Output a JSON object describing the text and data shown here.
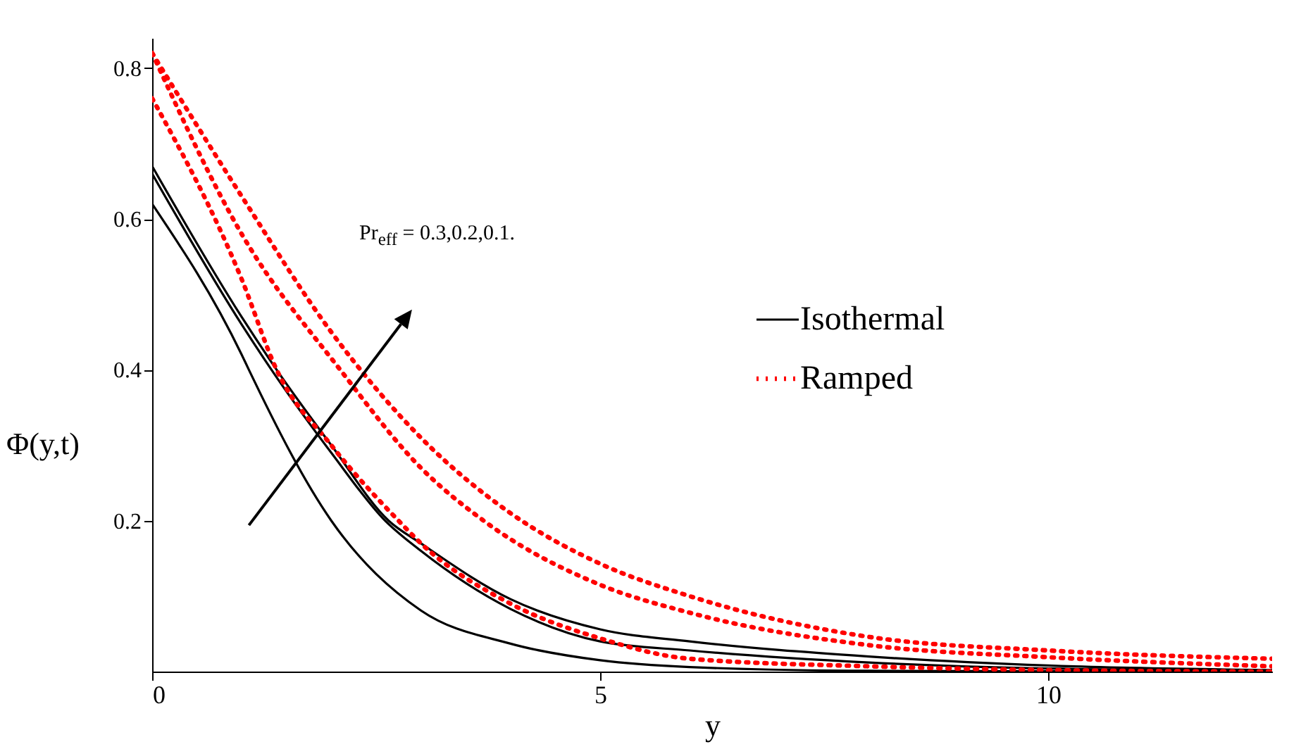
{
  "chart_data": {
    "type": "line",
    "xlabel": "y",
    "ylabel": "Φ(y,t)",
    "xlim": [
      0,
      12.5
    ],
    "ylim": [
      0,
      0.84
    ],
    "xticks": [
      0,
      5,
      10
    ],
    "yticks": [
      0.2,
      0.4,
      0.6,
      0.8
    ],
    "grid": false,
    "legend": "right",
    "marker": "none",
    "annotations": [
      "Pr$_{eff}$ = 0.3,0.2,0.1."
    ],
    "series": [
      {
        "name": "Isothermal",
        "color": "#000000",
        "line_style": "solid",
        "x": [
          0,
          1,
          1.39,
          2,
          2.64,
          3,
          4,
          5,
          6,
          8,
          10,
          12.5
        ],
        "values": [
          0.67,
          0.47,
          0.4,
          0.3,
          0.2,
          0.17,
          0.096,
          0.056,
          0.04,
          0.02,
          0.008,
          0.002
        ]
      },
      {
        "color": "#000000",
        "line_style": "solid",
        "x": [
          0,
          1,
          1.39,
          2,
          2.6,
          3,
          4,
          5,
          6,
          8,
          10,
          12.5
        ],
        "values": [
          0.66,
          0.46,
          0.39,
          0.29,
          0.2,
          0.16,
          0.083,
          0.04,
          0.028,
          0.012,
          0.004,
          0.001
        ]
      },
      {
        "color": "#000000",
        "line_style": "solid",
        "x": [
          0,
          1,
          1.08,
          2,
          3,
          4,
          5,
          6,
          8,
          12.5
        ],
        "values": [
          0.62,
          0.42,
          0.4,
          0.2,
          0.081,
          0.037,
          0.015,
          0.006,
          0.001,
          0
        ]
      },
      {
        "name": "Ramped",
        "color": "#ff0000",
        "line_style": "dotted",
        "x": [
          0,
          1,
          2,
          3,
          4,
          5,
          6,
          8,
          10,
          12.5
        ],
        "values": [
          0.82,
          0.63,
          0.45,
          0.31,
          0.21,
          0.143,
          0.1,
          0.046,
          0.028,
          0.017
        ]
      },
      {
        "color": "#ff0000",
        "line_style": "dotted",
        "x": [
          0,
          1,
          2.1,
          3,
          3.7,
          5,
          6,
          8,
          10,
          12.5
        ],
        "values": [
          0.82,
          0.58,
          0.4,
          0.27,
          0.2,
          0.115,
          0.078,
          0.035,
          0.019,
          0.007
        ]
      },
      {
        "color": "#ff0000",
        "line_style": "dotted",
        "x": [
          0,
          1,
          1.39,
          2,
          2.75,
          3,
          4,
          5,
          6,
          8,
          10,
          12.5
        ],
        "values": [
          0.76,
          0.52,
          0.4,
          0.3,
          0.2,
          0.17,
          0.09,
          0.044,
          0.017,
          0.007,
          0.002,
          0
        ]
      }
    ]
  }
}
